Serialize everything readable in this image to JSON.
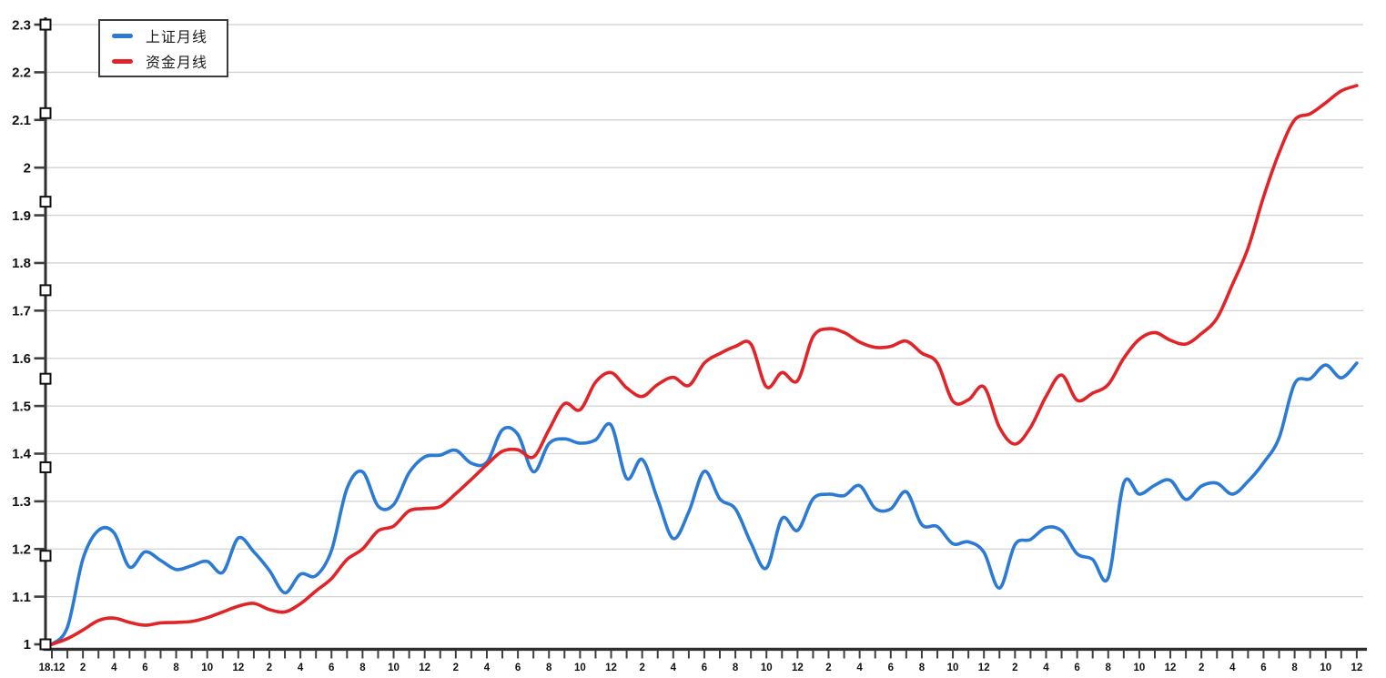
{
  "legend": {
    "items": [
      {
        "label": "上证月线",
        "color": "#2b7ad4"
      },
      {
        "label": "资金月线",
        "color": "#e02428"
      }
    ]
  },
  "colors": {
    "background": "#ffffff",
    "grid": "#d2d2d2",
    "axis": "#2e2e2e",
    "tick": "#3f3f3f",
    "tick_label": "#111111",
    "legend_border": "#3b3b3b",
    "handle_fill": "#ffffff",
    "handle_stroke": "#111111"
  },
  "chart_data": {
    "type": "line",
    "title": "",
    "grid": "horizontal-only",
    "legend_position": "top-left",
    "smooth": true,
    "x_axis": {
      "unit": "month",
      "month_count": 85,
      "first_point": "2018-12",
      "last_point": "2025-12",
      "tick_every_months": 1,
      "label_every_months": 2,
      "tick_labels": [
        "18.12",
        "2",
        "4",
        "6",
        "8",
        "10",
        "12",
        "2",
        "4",
        "6",
        "8",
        "10",
        "12",
        "2",
        "4",
        "6",
        "8",
        "10",
        "12",
        "2",
        "4",
        "6",
        "8",
        "10",
        "12",
        "2",
        "4",
        "6",
        "8",
        "10",
        "12",
        "2",
        "4",
        "6",
        "8",
        "10",
        "12",
        "2",
        "4",
        "6",
        "8",
        "10",
        "12"
      ]
    },
    "y_axis": {
      "min": 1,
      "max": 2.3,
      "step": 0.1,
      "tick_labels": [
        "1",
        "1.1",
        "1.2",
        "1.3",
        "1.4",
        "1.5",
        "1.6",
        "1.7",
        "1.8",
        "1.9",
        "2",
        "2.1",
        "2.2",
        "2.3"
      ],
      "handle_count": 8
    },
    "series": [
      {
        "name": "上证月线",
        "color": "#2b7ad4",
        "values": [
          1.0,
          1.036,
          1.179,
          1.239,
          1.234,
          1.162,
          1.194,
          1.176,
          1.157,
          1.165,
          1.174,
          1.151,
          1.223,
          1.194,
          1.155,
          1.108,
          1.147,
          1.144,
          1.197,
          1.327,
          1.362,
          1.29,
          1.293,
          1.36,
          1.393,
          1.397,
          1.407,
          1.38,
          1.382,
          1.45,
          1.44,
          1.362,
          1.421,
          1.431,
          1.422,
          1.429,
          1.46,
          1.348,
          1.388,
          1.304,
          1.222,
          1.278,
          1.363,
          1.305,
          1.284,
          1.213,
          1.16,
          1.264,
          1.239,
          1.305,
          1.315,
          1.312,
          1.333,
          1.285,
          1.284,
          1.32,
          1.251,
          1.247,
          1.211,
          1.215,
          1.193,
          1.118,
          1.209,
          1.22,
          1.245,
          1.238,
          1.19,
          1.178,
          1.14,
          1.338,
          1.315,
          1.334,
          1.344,
          1.304,
          1.332,
          1.338,
          1.315,
          1.342,
          1.381,
          1.433,
          1.547,
          1.557,
          1.586,
          1.559,
          1.59
        ]
      },
      {
        "name": "资金月线",
        "color": "#e02428",
        "values": [
          1.0,
          1.012,
          1.03,
          1.05,
          1.055,
          1.046,
          1.04,
          1.045,
          1.046,
          1.048,
          1.056,
          1.068,
          1.08,
          1.086,
          1.073,
          1.068,
          1.085,
          1.112,
          1.138,
          1.178,
          1.2,
          1.238,
          1.248,
          1.28,
          1.285,
          1.289,
          1.316,
          1.346,
          1.377,
          1.405,
          1.408,
          1.393,
          1.45,
          1.505,
          1.492,
          1.55,
          1.57,
          1.538,
          1.52,
          1.545,
          1.56,
          1.543,
          1.59,
          1.61,
          1.625,
          1.63,
          1.54,
          1.57,
          1.553,
          1.645,
          1.662,
          1.654,
          1.634,
          1.623,
          1.625,
          1.636,
          1.611,
          1.59,
          1.51,
          1.513,
          1.54,
          1.455,
          1.42,
          1.455,
          1.52,
          1.565,
          1.512,
          1.527,
          1.545,
          1.6,
          1.64,
          1.654,
          1.638,
          1.63,
          1.652,
          1.684,
          1.755,
          1.831,
          1.939,
          2.031,
          2.1,
          2.113,
          2.136,
          2.161,
          2.172
        ]
      }
    ]
  }
}
